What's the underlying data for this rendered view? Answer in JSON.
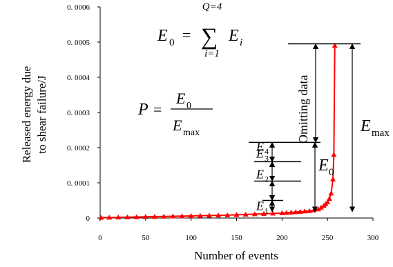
{
  "chart_data": {
    "type": "line",
    "title": "",
    "xlabel": "Number of events",
    "ylabel_lines": [
      "Released  energy due",
      "to shear failure/J"
    ],
    "xlim": [
      0,
      300
    ],
    "ylim": [
      0,
      0.0006
    ],
    "xticks": [
      0,
      50,
      100,
      150,
      200,
      250,
      300
    ],
    "xtick_labels": [
      "0",
      "50",
      "100",
      "150",
      "200",
      "250",
      "300"
    ],
    "yticks": [
      0,
      0.0001,
      0.0002,
      0.0003,
      0.0004,
      0.0005,
      0.0006
    ],
    "ytick_labels": [
      "0",
      "0. 0001",
      "0. 0002",
      "0. 0003",
      "0. 0004",
      "0. 0005",
      "0. 0006"
    ],
    "grid": false,
    "series": [
      {
        "color": "#ff0000",
        "marker": "triangle",
        "x": [
          1,
          10,
          20,
          30,
          40,
          50,
          60,
          70,
          80,
          90,
          100,
          110,
          120,
          130,
          140,
          150,
          160,
          170,
          180,
          190,
          200,
          205,
          210,
          215,
          220,
          225,
          230,
          235,
          240,
          243,
          246,
          248,
          250,
          252,
          254,
          256,
          257,
          258
        ],
        "y": [
          1e-06,
          1.5e-06,
          2e-06,
          2.5e-06,
          3e-06,
          3.5e-06,
          4e-06,
          4.5e-06,
          5e-06,
          5.5e-06,
          6e-06,
          6.5e-06,
          7e-06,
          7.5e-06,
          8e-06,
          9e-06,
          1e-05,
          1.1e-05,
          1.2e-05,
          1.3e-05,
          1.4e-05,
          1.5e-05,
          1.6e-05,
          1.7e-05,
          1.8e-05,
          1.9e-05,
          2e-05,
          2.2e-05,
          2.5e-05,
          3e-05,
          3.5e-05,
          4e-05,
          4.5e-05,
          5.5e-05,
          7e-05,
          0.00011,
          0.00018,
          0.00049
        ]
      }
    ],
    "levels": {
      "E1": 5e-05,
      "E2": 0.000105,
      "E3": 0.00016,
      "E4": 0.000215,
      "Emax": 0.000495
    },
    "annotations": {
      "sum_formula": {
        "lhs": "E",
        "lhs_sub": "0",
        "eq": "=",
        "sigma": "∑",
        "upper": "Q=4",
        "lower": "i=1",
        "term": "E",
        "term_sub": "i"
      },
      "ratio_formula": {
        "lhs": "P",
        "eq": "=",
        "num": "E",
        "num_sub": "0",
        "den": "E",
        "den_sub": "max"
      },
      "omitting_label": "Omitting data",
      "emax_label": "E",
      "emax_sub": "max",
      "e0_label": "E",
      "e0_sub": "0",
      "e_labels": [
        {
          "letter": "E",
          "sub": "1"
        },
        {
          "letter": "E",
          "sub": "2"
        },
        {
          "letter": "E",
          "sub": "3"
        },
        {
          "letter": "E",
          "sub": "4"
        }
      ]
    }
  }
}
